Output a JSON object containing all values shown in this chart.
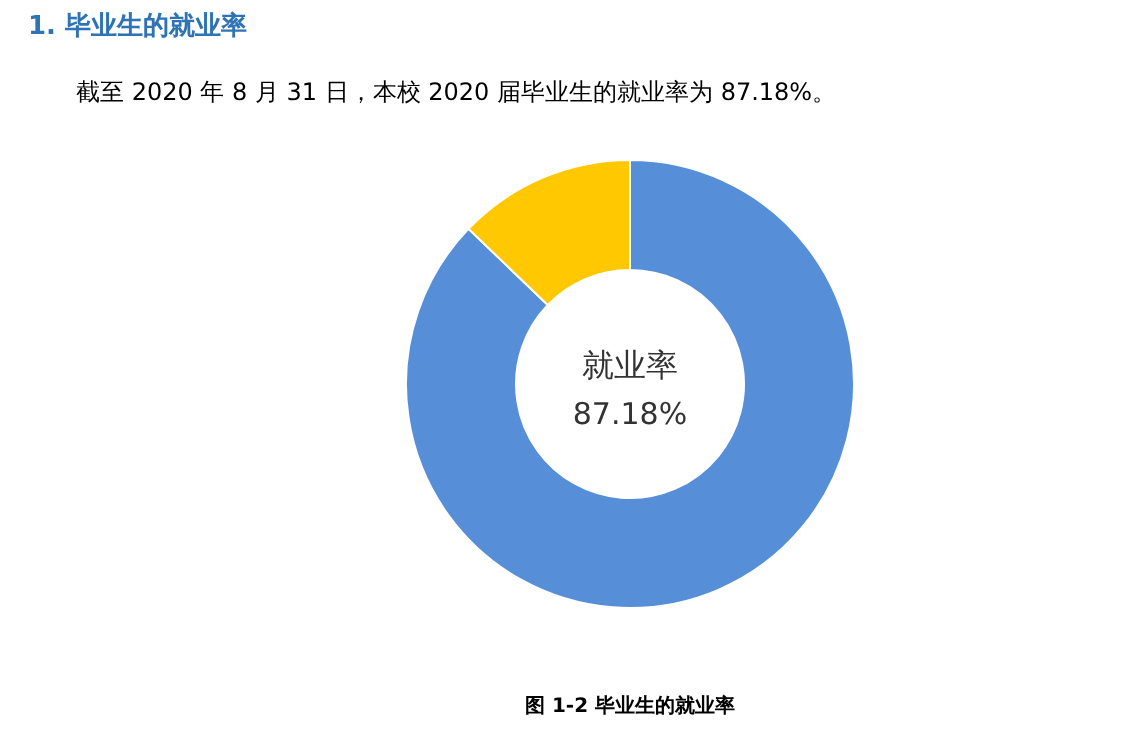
{
  "chart_data": {
    "type": "donut",
    "title": "1.    毕业生的就业率",
    "subtitle": "截至 2020 年 8 月 31 日，本校 2020 届毕业生的就业率为 87.18%。",
    "categories": [
      null,
      null
    ],
    "values": [
      87.18,
      12.82
    ],
    "colors": [
      "#568fd8",
      "#ffc800"
    ],
    "annotations": [
      "就业率",
      "87.18%",
      "图 1-2  毕业生的就业率"
    ]
  }
}
